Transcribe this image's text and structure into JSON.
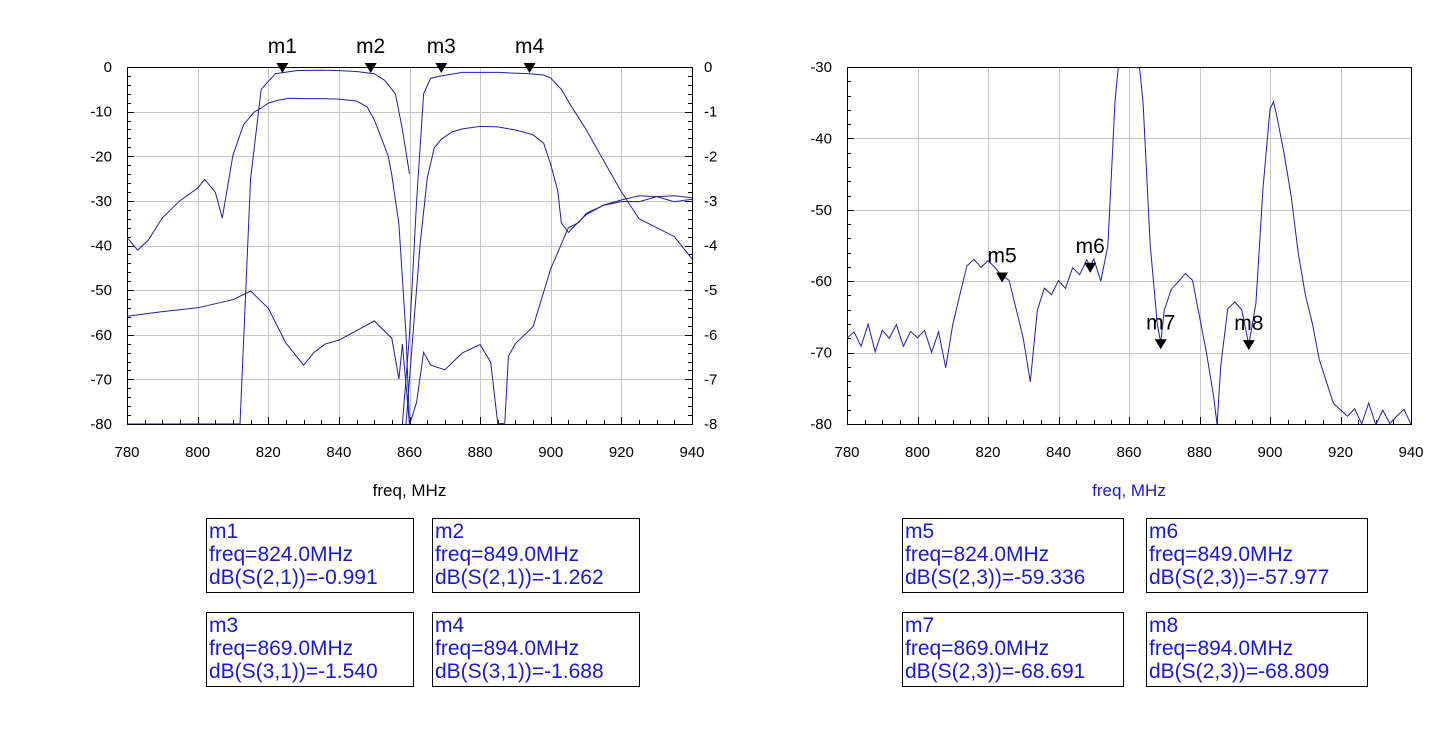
{
  "chart_data": [
    {
      "type": "line",
      "xlabel": "freq, MHz",
      "xlabel_color": "#000000",
      "xlim": [
        780,
        940
      ],
      "xticks": [
        780,
        800,
        820,
        840,
        860,
        880,
        900,
        920,
        940
      ],
      "ylim_left": [
        -80,
        0
      ],
      "yticks_left": [
        0,
        -10,
        -20,
        -30,
        -40,
        -50,
        -60,
        -70,
        -80
      ],
      "ylim_right": [
        -8,
        0
      ],
      "yticks_right": [
        0,
        -1,
        -2,
        -3,
        -4,
        -5,
        -6,
        -7,
        -8
      ],
      "grid": true,
      "line_color": "#2020a0",
      "series": [
        {
          "axis": "right",
          "x": [
            780,
            790,
            800,
            805,
            810,
            812,
            815,
            818,
            822,
            828,
            835,
            840,
            845,
            850,
            853,
            856,
            858,
            860
          ],
          "y": [
            -8,
            -8,
            -8,
            -8,
            -8,
            -8,
            -2.5,
            -0.5,
            -0.15,
            -0.08,
            -0.07,
            -0.08,
            -0.1,
            -0.15,
            -0.3,
            -0.6,
            -1.4,
            -2.4
          ]
        },
        {
          "axis": "right",
          "x": [
            858,
            860,
            862,
            864,
            866,
            869,
            875,
            885,
            894,
            898,
            900,
            903,
            906,
            910,
            915,
            920,
            925,
            930,
            935,
            940
          ],
          "y": [
            -8,
            -6,
            -3,
            -0.6,
            -0.25,
            -0.2,
            -0.12,
            -0.12,
            -0.15,
            -0.18,
            -0.25,
            -0.5,
            -0.9,
            -1.4,
            -2.1,
            -2.8,
            -3.4,
            -3.6,
            -3.8,
            -4.3
          ]
        },
        {
          "axis": "left",
          "x": [
            780,
            783,
            786,
            790,
            795,
            800,
            802,
            805,
            807,
            810,
            813,
            816,
            818,
            820,
            823,
            826,
            830,
            835,
            840,
            845,
            848,
            850,
            852,
            854,
            855,
            857,
            859,
            860
          ],
          "y": [
            -38,
            -41,
            -39,
            -34,
            -30,
            -27,
            -25,
            -28,
            -34,
            -20,
            -13,
            -10,
            -9,
            -8,
            -7.5,
            -7.2,
            -7.2,
            -7,
            -7,
            -7.5,
            -9,
            -12,
            -16,
            -20,
            -24,
            -35,
            -60,
            -80
          ]
        },
        {
          "axis": "left",
          "x": [
            859,
            861,
            863,
            865,
            867,
            869,
            872,
            875,
            880,
            885,
            890,
            895,
            898,
            900,
            902,
            903,
            905,
            906,
            910,
            915,
            920,
            925,
            930,
            935,
            940
          ],
          "y": [
            -80,
            -60,
            -40,
            -25,
            -18,
            -16,
            -14.5,
            -14,
            -13.5,
            -13.5,
            -14,
            -15,
            -17,
            -22,
            -28,
            -35,
            -37,
            -36,
            -33,
            -31,
            -30,
            -29,
            -29,
            -30,
            -29.5
          ]
        },
        {
          "axis": "left",
          "x": [
            780,
            790,
            800,
            810,
            815,
            820,
            825,
            830,
            833,
            836,
            840,
            845,
            850,
            855,
            857,
            858,
            860,
            862,
            864,
            866,
            870,
            875,
            880,
            883,
            885,
            887,
            888,
            890,
            895,
            900,
            905,
            908,
            910,
            915,
            920,
            925,
            930,
            935,
            940
          ],
          "y": [
            -56,
            -55,
            -54,
            -52,
            -50,
            -54,
            -62,
            -67,
            -64,
            -62,
            -61,
            -59,
            -57,
            -61,
            -70,
            -62,
            -80,
            -75,
            -64,
            -67,
            -68,
            -64,
            -62,
            -66,
            -80,
            -80,
            -65,
            -62,
            -58,
            -45,
            -36,
            -35,
            -33,
            -31,
            -30,
            -30,
            -29,
            -29,
            -29.5
          ]
        }
      ],
      "markers": [
        {
          "name": "m1",
          "x": 824,
          "y": 0,
          "axis": "right"
        },
        {
          "name": "m2",
          "x": 849,
          "y": 0,
          "axis": "right"
        },
        {
          "name": "m3",
          "x": 869,
          "y": 0,
          "axis": "right"
        },
        {
          "name": "m4",
          "x": 894,
          "y": 0,
          "axis": "right"
        }
      ]
    },
    {
      "type": "line",
      "xlabel": "freq, MHz",
      "xlabel_color": "#1a1acc",
      "xlim": [
        780,
        940
      ],
      "xticks": [
        780,
        800,
        820,
        840,
        860,
        880,
        900,
        920,
        940
      ],
      "ylim": [
        -80,
        -30
      ],
      "yticks": [
        -30,
        -40,
        -50,
        -60,
        -70,
        -80
      ],
      "grid": true,
      "line_color": "#2020a0",
      "series": [
        {
          "axis": "left",
          "x": [
            780,
            782,
            784,
            786,
            788,
            790,
            792,
            794,
            796,
            798,
            800,
            802,
            804,
            806,
            808,
            810,
            812,
            814,
            816,
            818,
            820,
            822,
            824,
            826,
            828,
            830,
            832,
            834,
            836,
            838,
            840,
            842,
            844,
            846,
            848,
            849,
            850,
            852,
            854,
            855,
            856,
            857,
            858,
            860,
            862,
            863,
            864,
            866,
            868,
            869,
            870,
            872,
            874,
            876,
            878,
            880,
            882,
            884,
            885,
            886,
            888,
            890,
            892,
            894,
            896,
            898,
            900,
            901,
            902,
            904,
            906,
            908,
            910,
            912,
            914,
            916,
            918,
            920,
            922,
            924,
            926,
            928,
            930,
            932,
            934,
            936,
            938,
            940
          ],
          "y": [
            -68,
            -67,
            -69,
            -66,
            -70,
            -67,
            -68,
            -66,
            -69,
            -67,
            -68,
            -67,
            -70,
            -67,
            -72,
            -66,
            -62,
            -58,
            -57,
            -58,
            -57,
            -58,
            -59.3,
            -60,
            -64,
            -68,
            -74,
            -64,
            -61,
            -62,
            -60,
            -61,
            -58,
            -59,
            -57,
            -58,
            -57,
            -60,
            -55,
            -45,
            -35,
            -30,
            -30,
            -30,
            -30,
            -30,
            -35,
            -55,
            -66,
            -68.7,
            -64,
            -61,
            -60,
            -59,
            -60,
            -65,
            -70,
            -76,
            -80,
            -72,
            -64,
            -63,
            -64,
            -68.8,
            -63,
            -47,
            -36,
            -35,
            -37,
            -42,
            -48,
            -56,
            -62,
            -66,
            -71,
            -74,
            -77,
            -78,
            -79,
            -78,
            -80,
            -77,
            -80,
            -78,
            -80,
            -79,
            -78,
            -80
          ]
        }
      ],
      "markers": [
        {
          "name": "m5",
          "x": 824,
          "y": -59.336
        },
        {
          "name": "m6",
          "x": 849,
          "y": -57.977
        },
        {
          "name": "m7",
          "x": 869,
          "y": -68.691
        },
        {
          "name": "m8",
          "x": 894,
          "y": -68.809
        }
      ]
    }
  ],
  "readouts": [
    {
      "name": "m1",
      "freq": "freq=824.0MHz",
      "value": "dB(S(2,1))=-0.991"
    },
    {
      "name": "m2",
      "freq": "freq=849.0MHz",
      "value": "dB(S(2,1))=-1.262"
    },
    {
      "name": "m3",
      "freq": "freq=869.0MHz",
      "value": "dB(S(3,1))=-1.540"
    },
    {
      "name": "m4",
      "freq": "freq=894.0MHz",
      "value": "dB(S(3,1))=-1.688"
    },
    {
      "name": "m5",
      "freq": "freq=824.0MHz",
      "value": "dB(S(2,3))=-59.336"
    },
    {
      "name": "m6",
      "freq": "freq=849.0MHz",
      "value": "dB(S(2,3))=-57.977"
    },
    {
      "name": "m7",
      "freq": "freq=869.0MHz",
      "value": "dB(S(2,3))=-68.691"
    },
    {
      "name": "m8",
      "freq": "freq=894.0MHz",
      "value": "dB(S(2,3))=-68.809"
    }
  ]
}
